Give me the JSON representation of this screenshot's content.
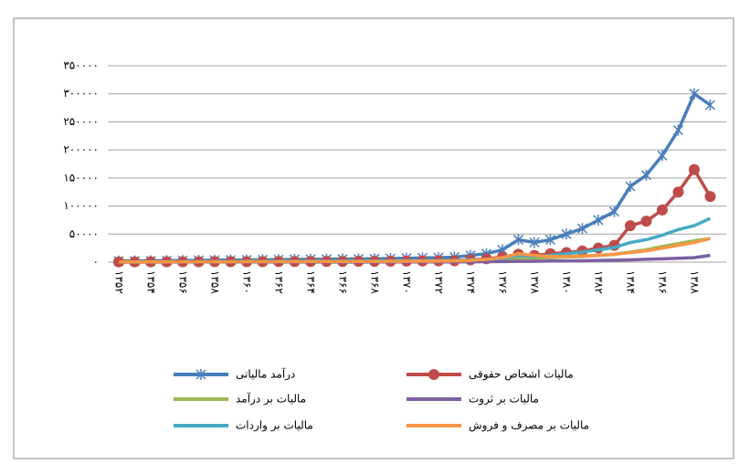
{
  "chart_data": {
    "type": "line",
    "categories": [
      "۱۳۵۲",
      null,
      "۱۳۵۴",
      null,
      "۱۳۵۶",
      null,
      "۱۳۵۸",
      null,
      "۱۳۶۰",
      null,
      "۱۳۶۲",
      null,
      "۱۳۶۴",
      null,
      "۱۳۶۶",
      null,
      "۱۳۶۸",
      null,
      "۱۳۷۰",
      null,
      "۱۳۷۲",
      null,
      "۱۳۷۴",
      null,
      "۱۳۷۶",
      null,
      "۱۳۷۸",
      null,
      "۱۳۸۰",
      null,
      "۱۳۸۲",
      null,
      "۱۳۸۴",
      null,
      "۱۳۸۶",
      null,
      "۱۳۸۸",
      null
    ],
    "series": [
      {
        "name": "درآمد مالیاتی",
        "color": "#4a7ebb",
        "values": [
          2000,
          2200,
          2500,
          2800,
          3000,
          3200,
          3500,
          3800,
          4000,
          4200,
          4500,
          4800,
          5000,
          5200,
          5500,
          5800,
          6000,
          6500,
          7000,
          7500,
          8000,
          9000,
          12000,
          15000,
          22000,
          40000,
          35000,
          40000,
          50000,
          60000,
          75000,
          90000,
          135000,
          155000,
          190000,
          235000,
          300000,
          280000
        ]
      },
      {
        "name": "مالیات اشخاص حقوقی",
        "color": "#be4b48",
        "values": [
          500,
          500,
          600,
          600,
          700,
          700,
          800,
          800,
          900,
          900,
          1000,
          1000,
          1100,
          1200,
          1300,
          1400,
          1500,
          1600,
          1800,
          2000,
          2200,
          2500,
          4000,
          6000,
          9000,
          14000,
          12000,
          15000,
          17000,
          20000,
          25000,
          30000,
          65000,
          73000,
          93000,
          125000,
          165000,
          117000
        ]
      },
      {
        "name": "مالیات بر درآمد",
        "color": "#98b954",
        "values": [
          300,
          300,
          400,
          400,
          400,
          500,
          500,
          500,
          600,
          600,
          700,
          700,
          800,
          800,
          900,
          900,
          1000,
          1000,
          1100,
          1200,
          1300,
          1500,
          2000,
          3000,
          4000,
          6000,
          7000,
          8000,
          9000,
          10000,
          12000,
          14000,
          18000,
          22000,
          28000,
          33000,
          38000,
          42000
        ]
      },
      {
        "name": "مالیات بر ثروت",
        "color": "#7d60a0",
        "values": [
          100,
          100,
          100,
          100,
          150,
          150,
          150,
          200,
          200,
          200,
          200,
          250,
          250,
          250,
          300,
          300,
          300,
          350,
          400,
          400,
          450,
          500,
          600,
          800,
          1000,
          1500,
          1500,
          2000,
          2000,
          2500,
          3000,
          3500,
          4000,
          5000,
          6000,
          7000,
          8000,
          12000
        ]
      },
      {
        "name": "مالیات بر واردات",
        "color": "#46aac5",
        "values": [
          500,
          600,
          700,
          800,
          900,
          1000,
          1000,
          1100,
          1200,
          1300,
          1400,
          1500,
          1600,
          1700,
          1800,
          1900,
          2000,
          2200,
          2400,
          2600,
          2800,
          3000,
          4000,
          5000,
          7000,
          12000,
          10000,
          12000,
          15000,
          18000,
          22000,
          26000,
          35000,
          40000,
          48000,
          58000,
          65000,
          78000
        ]
      },
      {
        "name": "مالیات بر مصرف و فروش",
        "color": "#f79646",
        "values": [
          400,
          400,
          500,
          500,
          600,
          600,
          700,
          700,
          800,
          800,
          900,
          900,
          1000,
          1000,
          1100,
          1200,
          1300,
          1400,
          1500,
          1700,
          1900,
          2200,
          3000,
          5000,
          8000,
          15000,
          12000,
          10000,
          10000,
          11000,
          12000,
          14000,
          17000,
          20000,
          25000,
          30000,
          35000,
          42000
        ]
      }
    ],
    "ylim": [
      0,
      350000
    ],
    "yticks": [
      {
        "value": 0,
        "label": "۰"
      },
      {
        "value": 50000,
        "label": "۵۰۰۰۰"
      },
      {
        "value": 100000,
        "label": "۱۰۰۰۰۰"
      },
      {
        "value": 150000,
        "label": "۱۵۰۰۰۰"
      },
      {
        "value": 200000,
        "label": "۲۰۰۰۰۰"
      },
      {
        "value": 250000,
        "label": "۲۵۰۰۰۰"
      },
      {
        "value": 300000,
        "label": "۳۰۰۰۰۰"
      },
      {
        "value": 350000,
        "label": "۳۵۰۰۰۰"
      }
    ],
    "grid": true
  }
}
